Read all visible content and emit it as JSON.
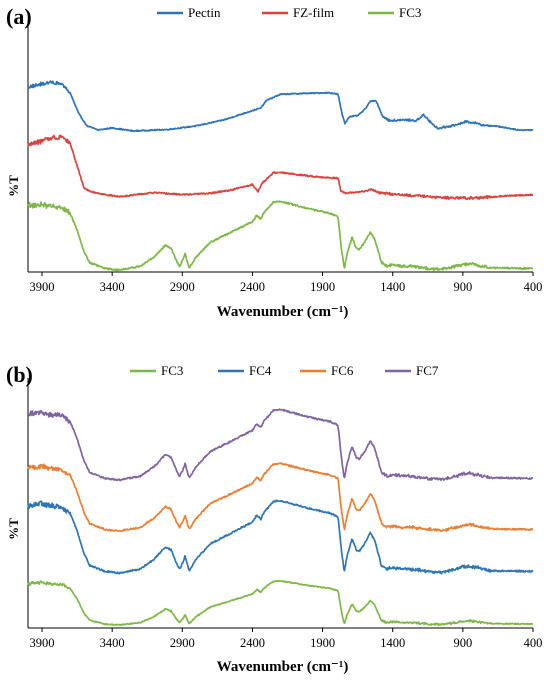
{
  "chart_data": [
    {
      "panel_label": "(a)",
      "type": "line",
      "xlabel": "Wavenumber (cm⁻¹)",
      "ylabel": "%T",
      "xlim": [
        4000,
        400
      ],
      "x_ticks": [
        3900,
        3400,
        2900,
        2400,
        1900,
        1400,
        900,
        400
      ],
      "x_reversed": true,
      "y_ticks_shown": false,
      "grid": false,
      "legend_position": "top-center",
      "series": [
        {
          "name": "Pectin",
          "color": "#2E75B6",
          "curve": "pectin",
          "offset": 0.0
        },
        {
          "name": "FZ-film",
          "color": "#D9423D",
          "curve": "fzfilm",
          "offset": 0.0
        },
        {
          "name": "FC3",
          "color": "#7DB747",
          "curve": "fc",
          "offset": 0.0
        }
      ]
    },
    {
      "panel_label": "(b)",
      "type": "line",
      "xlabel": "Wavenumber (cm⁻¹)",
      "ylabel": "%T",
      "xlim": [
        4000,
        400
      ],
      "x_ticks": [
        3900,
        3400,
        2900,
        2400,
        1900,
        1400,
        900,
        400
      ],
      "x_reversed": true,
      "y_ticks_shown": false,
      "grid": false,
      "legend_position": "top-center",
      "series": [
        {
          "name": "FC3",
          "color": "#7DB747",
          "curve": "fc",
          "offset": 0.0
        },
        {
          "name": "FC4",
          "color": "#2E75B6",
          "curve": "fc",
          "offset": 0.0
        },
        {
          "name": "FC6",
          "color": "#ED7D31",
          "curve": "fc",
          "offset": 0.0
        },
        {
          "name": "FC7",
          "color": "#8064A2",
          "curve": "fc",
          "offset": 0.0
        }
      ]
    }
  ]
}
